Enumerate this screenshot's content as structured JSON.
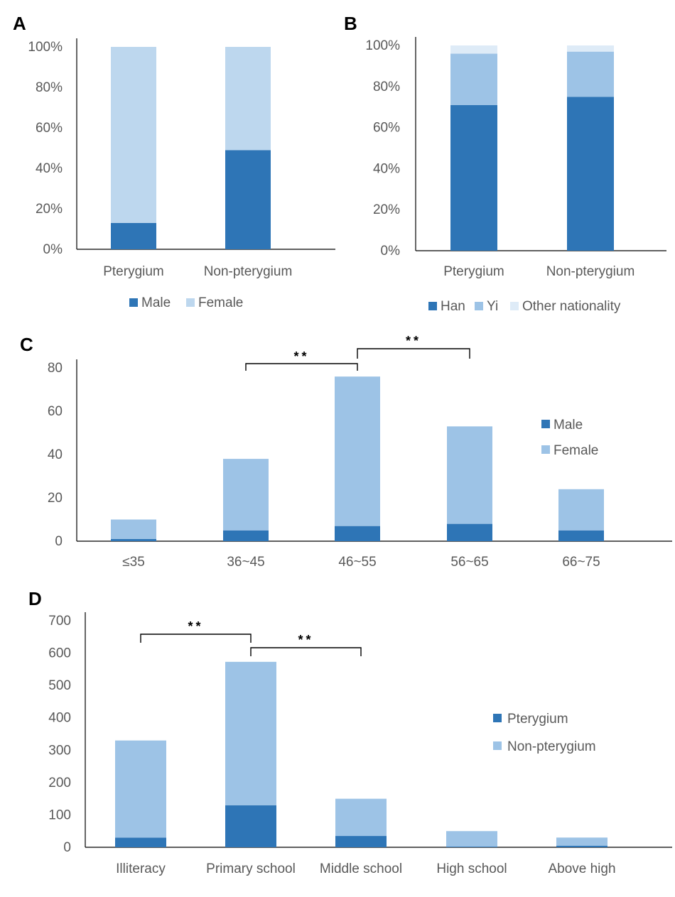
{
  "panels": [
    "A",
    "B",
    "C",
    "D"
  ],
  "chart_data": [
    {
      "panel": "A",
      "type": "bar",
      "stacked": true,
      "percent": true,
      "categories": [
        "Pterygium",
        "Non-pterygium"
      ],
      "series": [
        {
          "name": "Male",
          "values": [
            13,
            49
          ],
          "color": "#2E75B6"
        },
        {
          "name": "Female",
          "values": [
            87,
            51
          ],
          "color": "#BDD7EE"
        }
      ],
      "ylim": [
        0,
        100
      ],
      "yticks": [
        "0%",
        "20%",
        "40%",
        "60%",
        "80%",
        "100%"
      ],
      "legend": "bottom",
      "grid": false
    },
    {
      "panel": "B",
      "type": "bar",
      "stacked": true,
      "percent": true,
      "categories": [
        "Pterygium",
        "Non-pterygium"
      ],
      "series": [
        {
          "name": "Han",
          "values": [
            71,
            75
          ],
          "color": "#2E75B6"
        },
        {
          "name": "Yi",
          "values": [
            25,
            22
          ],
          "color": "#9DC3E6"
        },
        {
          "name": "Other nationality",
          "values": [
            4,
            3
          ],
          "color": "#DEEBF7"
        }
      ],
      "ylim": [
        0,
        100
      ],
      "yticks": [
        "0%",
        "20%",
        "40%",
        "60%",
        "80%",
        "100%"
      ],
      "legend": "bottom",
      "grid": false
    },
    {
      "panel": "C",
      "type": "bar",
      "stacked": true,
      "categories": [
        "≤35",
        "36~45",
        "46~55",
        "56~65",
        "66~75"
      ],
      "series": [
        {
          "name": "Male",
          "values": [
            1,
            5,
            7,
            8,
            5
          ],
          "color": "#2E75B6"
        },
        {
          "name": "Female",
          "values": [
            9,
            33,
            69,
            45,
            19
          ],
          "color": "#9DC3E6"
        }
      ],
      "ylim": [
        0,
        80
      ],
      "yticks": [
        "0",
        "20",
        "40",
        "60",
        "80"
      ],
      "legend": "right",
      "grid": false,
      "significance": [
        {
          "from": 1,
          "to": 2,
          "label": "**"
        },
        {
          "from": 2,
          "to": 3,
          "label": "**"
        }
      ]
    },
    {
      "panel": "D",
      "type": "bar",
      "stacked": true,
      "categories": [
        "Illiteracy",
        "Primary school",
        "Middle school",
        "High school",
        "Above high"
      ],
      "series": [
        {
          "name": "Pterygium",
          "values": [
            30,
            130,
            35,
            2,
            5
          ],
          "color": "#2E75B6"
        },
        {
          "name": "Non-pterygium",
          "values": [
            300,
            443,
            115,
            48,
            25
          ],
          "color": "#9DC3E6"
        }
      ],
      "ylim": [
        0,
        700
      ],
      "yticks": [
        "0",
        "100",
        "200",
        "300",
        "400",
        "500",
        "600",
        "700"
      ],
      "legend": "right",
      "grid": false,
      "significance": [
        {
          "from": 0,
          "to": 1,
          "label": "**"
        },
        {
          "from": 1,
          "to": 2,
          "label": "**"
        }
      ]
    }
  ]
}
